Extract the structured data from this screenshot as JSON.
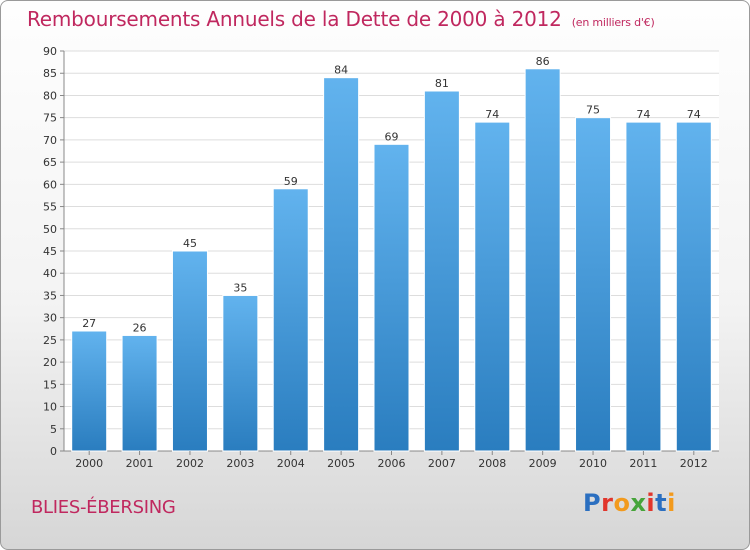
{
  "title": "Remboursements Annuels de la Dette de 2000 à 2012",
  "unit": "(en milliers d'€)",
  "commune": "BLIES-ÉBERSING",
  "logo": {
    "letters": [
      "P",
      "r",
      "o",
      "x",
      "i",
      "t",
      "i"
    ],
    "colors": [
      "#2b6fc0",
      "#e1352b",
      "#f29a1d",
      "#46a43a",
      "#e1352b",
      "#2b6fc0",
      "#f29a1d"
    ]
  },
  "chart_data": {
    "type": "bar",
    "categories": [
      "2000",
      "2001",
      "2002",
      "2003",
      "2004",
      "2005",
      "2006",
      "2007",
      "2008",
      "2009",
      "2010",
      "2011",
      "2012"
    ],
    "values": [
      27,
      26,
      45,
      35,
      59,
      84,
      69,
      81,
      74,
      86,
      75,
      74,
      74
    ],
    "data_labels": [
      "27",
      "26",
      "45",
      "35",
      "59",
      "84",
      "69",
      "81",
      "74",
      "86",
      "75",
      "74",
      "74"
    ],
    "yticks": [
      "0",
      "5",
      "10",
      "15",
      "20",
      "25",
      "30",
      "35",
      "40",
      "45",
      "50",
      "55",
      "60",
      "65",
      "70",
      "75",
      "80",
      "85",
      "90"
    ],
    "ylim": [
      0,
      90
    ],
    "grid": true,
    "bar_color": "#4a9de0"
  }
}
